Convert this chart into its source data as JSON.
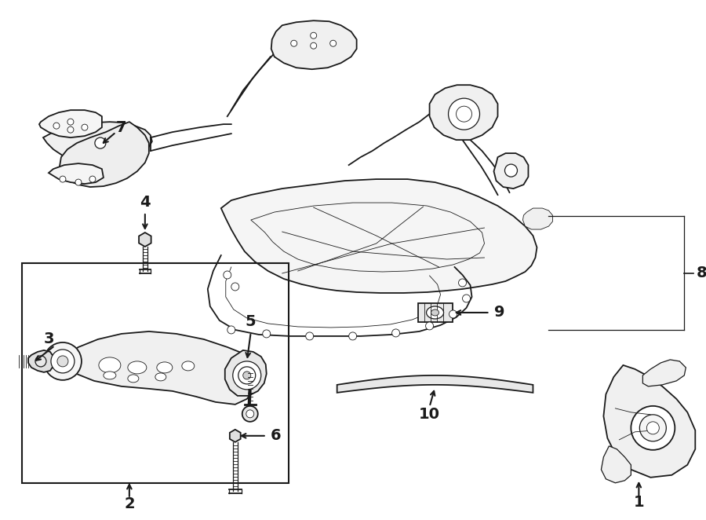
{
  "bg_color": "#ffffff",
  "line_color": "#1a1a1a",
  "fig_width": 9.0,
  "fig_height": 6.62,
  "dpi": 100
}
